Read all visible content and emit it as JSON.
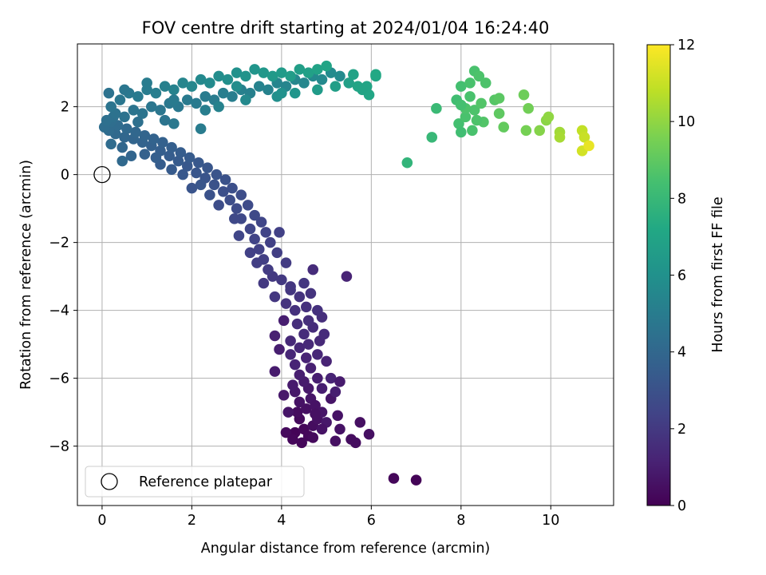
{
  "chart_data": {
    "type": "scatter",
    "title": "FOV centre drift starting at 2024/01/04 16:24:40",
    "xlabel": "Angular distance from reference (arcmin)",
    "ylabel": "Rotation from reference (arcmin)",
    "xlim": [
      -0.55,
      11.4
    ],
    "ylim": [
      -9.75,
      3.85
    ],
    "xticks": [
      0,
      2,
      4,
      6,
      8,
      10
    ],
    "yticks": [
      -8,
      -6,
      -4,
      -2,
      0,
      2
    ],
    "xtick_labels": [
      "0",
      "2",
      "4",
      "6",
      "8",
      "10"
    ],
    "ytick_labels": [
      "−8",
      "−6",
      "−4",
      "−2",
      "0",
      "2"
    ],
    "grid": true,
    "legend": {
      "placement": "lower-left",
      "entries": [
        "Reference platepar"
      ]
    },
    "reference_point": {
      "x": 0,
      "y": 0
    },
    "colorbar": {
      "label": "Hours from first FF file",
      "range": [
        0,
        12
      ],
      "ticks": [
        0,
        2,
        4,
        6,
        8,
        10,
        12
      ],
      "tick_labels": [
        "0",
        "2",
        "4",
        "6",
        "8",
        "10",
        "12"
      ],
      "colormap": "viridis"
    },
    "points": [
      [
        4.3,
        -7.6,
        0.1
      ],
      [
        4.5,
        -7.5,
        0.2
      ],
      [
        4.4,
        -7.2,
        0.3
      ],
      [
        4.6,
        -7.7,
        0.2
      ],
      [
        4.7,
        -7.4,
        0.4
      ],
      [
        4.35,
        -7.0,
        0.4
      ],
      [
        4.55,
        -6.9,
        0.5
      ],
      [
        4.8,
        -7.2,
        0.5
      ],
      [
        4.4,
        -6.7,
        0.6
      ],
      [
        4.65,
        -6.6,
        0.7
      ],
      [
        4.9,
        -7.0,
        0.7
      ],
      [
        4.3,
        -6.4,
        0.8
      ],
      [
        4.6,
        -6.3,
        0.8
      ],
      [
        4.75,
        -6.8,
        0.6
      ],
      [
        5.0,
        -7.3,
        0.8
      ],
      [
        4.5,
        -6.1,
        0.9
      ],
      [
        4.8,
        -6.0,
        1.0
      ],
      [
        4.4,
        -5.9,
        1.0
      ],
      [
        4.65,
        -5.7,
        1.1
      ],
      [
        4.9,
        -6.3,
        1.0
      ],
      [
        4.3,
        -5.6,
        1.2
      ],
      [
        4.55,
        -5.4,
        1.2
      ],
      [
        4.8,
        -5.3,
        1.3
      ],
      [
        5.1,
        -6.0,
        1.2
      ],
      [
        4.4,
        -5.1,
        1.3
      ],
      [
        4.6,
        -5.0,
        1.4
      ],
      [
        4.85,
        -4.9,
        1.4
      ],
      [
        4.2,
        -5.3,
        1.3
      ],
      [
        4.5,
        -4.7,
        1.5
      ],
      [
        4.7,
        -4.5,
        1.5
      ],
      [
        4.95,
        -4.7,
        1.5
      ],
      [
        4.35,
        -4.4,
        1.6
      ],
      [
        4.6,
        -4.3,
        1.6
      ],
      [
        4.9,
        -4.2,
        1.6
      ],
      [
        4.3,
        -4.0,
        1.7
      ],
      [
        4.55,
        -3.9,
        1.7
      ],
      [
        4.8,
        -4.0,
        1.7
      ],
      [
        4.1,
        -3.8,
        1.8
      ],
      [
        4.4,
        -3.6,
        1.8
      ],
      [
        4.65,
        -3.5,
        1.8
      ],
      [
        4.2,
        -3.3,
        1.9
      ],
      [
        4.5,
        -3.2,
        1.9
      ],
      [
        4.7,
        -2.8,
        1.5
      ],
      [
        5.45,
        -3.0,
        1.2
      ],
      [
        4.05,
        -4.3,
        1.0
      ],
      [
        3.85,
        -4.75,
        1.1
      ],
      [
        3.95,
        -5.15,
        1.0
      ],
      [
        3.85,
        -5.8,
        0.9
      ],
      [
        4.05,
        -6.5,
        0.8
      ],
      [
        4.15,
        -7.0,
        0.7
      ],
      [
        4.9,
        -7.5,
        0.6
      ],
      [
        5.2,
        -7.85,
        0.5
      ],
      [
        5.55,
        -7.8,
        0.4
      ],
      [
        5.65,
        -7.9,
        0.4
      ],
      [
        5.75,
        -7.3,
        0.5
      ],
      [
        5.95,
        -7.65,
        0.5
      ],
      [
        6.5,
        -8.95,
        0.2
      ],
      [
        7.0,
        -9.0,
        0.1
      ],
      [
        5.25,
        -7.1,
        0.6
      ],
      [
        5.1,
        -6.6,
        0.7
      ],
      [
        5.3,
        -6.1,
        0.9
      ],
      [
        4.1,
        -7.6,
        0.3
      ],
      [
        4.25,
        -7.8,
        0.2
      ],
      [
        4.45,
        -7.9,
        0.2
      ],
      [
        4.7,
        -7.75,
        0.3
      ],
      [
        5.3,
        -7.5,
        0.6
      ],
      [
        4.25,
        -6.2,
        0.9
      ],
      [
        4.2,
        -4.9,
        1.4
      ],
      [
        5.0,
        -5.5,
        1.2
      ],
      [
        5.2,
        -6.4,
        1.0
      ],
      [
        4.75,
        -7.05,
        0.5
      ],
      [
        4.0,
        -3.1,
        2.0
      ],
      [
        3.8,
        -3.0,
        2.0
      ],
      [
        4.1,
        -2.6,
        2.1
      ],
      [
        3.7,
        -2.8,
        2.1
      ],
      [
        3.9,
        -2.3,
        2.2
      ],
      [
        3.6,
        -2.5,
        2.2
      ],
      [
        3.75,
        -2.0,
        2.3
      ],
      [
        3.5,
        -2.2,
        2.3
      ],
      [
        3.65,
        -1.7,
        2.4
      ],
      [
        3.4,
        -1.9,
        2.4
      ],
      [
        3.55,
        -1.4,
        2.5
      ],
      [
        3.3,
        -1.6,
        2.5
      ],
      [
        3.4,
        -1.2,
        2.6
      ],
      [
        3.1,
        -1.3,
        2.6
      ],
      [
        3.25,
        -0.9,
        2.7
      ],
      [
        3.0,
        -1.0,
        2.7
      ],
      [
        3.1,
        -0.6,
        2.8
      ],
      [
        2.85,
        -0.75,
        2.8
      ],
      [
        2.9,
        -0.4,
        2.9
      ],
      [
        2.7,
        -0.5,
        2.9
      ],
      [
        2.75,
        -0.15,
        3.0
      ],
      [
        2.5,
        -0.3,
        3.0
      ],
      [
        2.55,
        0.0,
        3.1
      ],
      [
        2.3,
        -0.1,
        3.1
      ],
      [
        2.35,
        0.2,
        3.2
      ],
      [
        2.1,
        0.05,
        3.2
      ],
      [
        2.15,
        0.35,
        3.3
      ],
      [
        1.9,
        0.25,
        3.3
      ],
      [
        1.95,
        0.5,
        3.4
      ],
      [
        1.7,
        0.4,
        3.4
      ],
      [
        1.75,
        0.65,
        3.5
      ],
      [
        1.5,
        0.55,
        3.5
      ],
      [
        1.55,
        0.8,
        3.6
      ],
      [
        1.3,
        0.7,
        3.6
      ],
      [
        1.35,
        0.95,
        3.7
      ],
      [
        1.1,
        0.85,
        3.7
      ],
      [
        1.15,
        1.05,
        3.8
      ],
      [
        0.9,
        0.95,
        3.8
      ],
      [
        0.95,
        1.15,
        3.9
      ],
      [
        0.7,
        1.05,
        3.9
      ],
      [
        0.75,
        1.25,
        4.0
      ],
      [
        0.5,
        1.1,
        4.0
      ],
      [
        0.55,
        1.35,
        4.1
      ],
      [
        0.3,
        1.2,
        4.1
      ],
      [
        0.35,
        1.45,
        4.2
      ],
      [
        0.15,
        1.3,
        4.2
      ],
      [
        0.2,
        1.55,
        4.3
      ],
      [
        0.05,
        1.4,
        4.3
      ],
      [
        3.85,
        -3.6,
        1.9
      ],
      [
        3.6,
        -3.2,
        2.0
      ],
      [
        3.95,
        -1.7,
        2.3
      ],
      [
        3.3,
        -2.3,
        2.3
      ],
      [
        2.95,
        -1.3,
        2.6
      ],
      [
        2.4,
        -0.6,
        3.0
      ],
      [
        1.8,
        0.0,
        3.3
      ],
      [
        1.3,
        0.3,
        3.5
      ],
      [
        0.95,
        0.6,
        3.7
      ],
      [
        0.45,
        0.8,
        4.0
      ],
      [
        0.2,
        0.9,
        4.2
      ],
      [
        0.45,
        0.4,
        4.1
      ],
      [
        0.65,
        0.55,
        3.9
      ],
      [
        4.2,
        -3.4,
        1.9
      ],
      [
        3.05,
        -1.8,
        2.5
      ],
      [
        2.6,
        -0.9,
        2.8
      ],
      [
        2.0,
        -0.4,
        3.1
      ],
      [
        1.55,
        0.15,
        3.4
      ],
      [
        2.2,
        -0.3,
        3.2
      ],
      [
        1.2,
        0.5,
        3.6
      ],
      [
        3.45,
        -2.6,
        2.2
      ],
      [
        0.25,
        1.7,
        4.4
      ],
      [
        0.1,
        1.6,
        4.4
      ],
      [
        0.3,
        1.8,
        4.5
      ],
      [
        0.5,
        1.7,
        4.5
      ],
      [
        0.7,
        1.9,
        4.6
      ],
      [
        0.9,
        1.8,
        4.6
      ],
      [
        1.1,
        2.0,
        4.7
      ],
      [
        1.3,
        1.9,
        4.7
      ],
      [
        1.5,
        2.1,
        4.8
      ],
      [
        1.7,
        2.0,
        4.8
      ],
      [
        1.9,
        2.2,
        4.9
      ],
      [
        2.1,
        2.1,
        4.9
      ],
      [
        2.3,
        2.3,
        5.0
      ],
      [
        2.5,
        2.2,
        5.0
      ],
      [
        2.7,
        2.4,
        5.1
      ],
      [
        2.9,
        2.3,
        5.1
      ],
      [
        3.1,
        2.5,
        5.2
      ],
      [
        3.3,
        2.4,
        5.2
      ],
      [
        3.5,
        2.6,
        5.3
      ],
      [
        3.7,
        2.5,
        5.3
      ],
      [
        3.9,
        2.7,
        5.4
      ],
      [
        4.1,
        2.6,
        5.4
      ],
      [
        4.3,
        2.8,
        5.5
      ],
      [
        4.5,
        2.7,
        5.5
      ],
      [
        4.7,
        2.9,
        5.6
      ],
      [
        4.9,
        2.8,
        5.6
      ],
      [
        5.1,
        3.0,
        5.7
      ],
      [
        5.3,
        2.9,
        5.7
      ],
      [
        0.2,
        2.0,
        4.6
      ],
      [
        0.4,
        2.2,
        4.7
      ],
      [
        0.6,
        2.4,
        4.8
      ],
      [
        0.8,
        2.3,
        4.9
      ],
      [
        1.0,
        2.5,
        5.0
      ],
      [
        1.2,
        2.4,
        5.1
      ],
      [
        1.4,
        2.6,
        5.2
      ],
      [
        1.6,
        2.5,
        5.3
      ],
      [
        1.8,
        2.7,
        5.4
      ],
      [
        2.0,
        2.6,
        5.5
      ],
      [
        2.2,
        2.8,
        5.6
      ],
      [
        2.4,
        2.7,
        5.7
      ],
      [
        2.6,
        2.9,
        5.8
      ],
      [
        2.8,
        2.8,
        5.9
      ],
      [
        3.0,
        3.0,
        6.0
      ],
      [
        3.2,
        2.9,
        6.1
      ],
      [
        3.4,
        3.1,
        6.2
      ],
      [
        3.6,
        3.0,
        6.3
      ],
      [
        3.8,
        2.9,
        6.4
      ],
      [
        4.0,
        3.0,
        6.5
      ],
      [
        4.2,
        2.9,
        6.6
      ],
      [
        4.4,
        3.1,
        6.7
      ],
      [
        4.6,
        3.0,
        6.8
      ],
      [
        4.8,
        3.1,
        6.9
      ],
      [
        5.0,
        3.2,
        7.0
      ],
      [
        0.15,
        2.4,
        4.5
      ],
      [
        1.0,
        2.7,
        5.0
      ],
      [
        0.5,
        2.5,
        4.7
      ],
      [
        1.6,
        2.2,
        4.9
      ],
      [
        2.3,
        1.9,
        5.1
      ],
      [
        2.2,
        1.35,
        5.0
      ],
      [
        1.6,
        1.5,
        4.8
      ],
      [
        1.4,
        1.6,
        4.6
      ],
      [
        0.8,
        1.55,
        4.4
      ],
      [
        2.6,
        2.0,
        5.3
      ],
      [
        3.2,
        2.2,
        5.6
      ],
      [
        3.9,
        2.3,
        5.9
      ],
      [
        4.3,
        2.4,
        6.2
      ],
      [
        4.8,
        2.5,
        6.5
      ],
      [
        5.5,
        2.7,
        6.8
      ],
      [
        5.7,
        2.6,
        7.0
      ],
      [
        5.2,
        2.6,
        6.7
      ],
      [
        5.6,
        2.95,
        6.9
      ],
      [
        5.9,
        2.6,
        7.0
      ],
      [
        6.1,
        2.9,
        7.1
      ],
      [
        6.1,
        2.95,
        7.2
      ],
      [
        5.95,
        2.35,
        7.1
      ],
      [
        5.8,
        2.5,
        7.0
      ],
      [
        4.0,
        2.4,
        6.0
      ],
      [
        3.0,
        2.6,
        5.8
      ],
      [
        6.8,
        0.35,
        7.8
      ],
      [
        7.35,
        1.1,
        8.0
      ],
      [
        7.45,
        1.95,
        8.1
      ],
      [
        7.9,
        2.2,
        8.3
      ],
      [
        8.0,
        2.6,
        8.4
      ],
      [
        8.2,
        2.7,
        8.5
      ],
      [
        8.3,
        3.05,
        8.5
      ],
      [
        8.4,
        2.9,
        8.6
      ],
      [
        8.55,
        2.7,
        8.6
      ],
      [
        7.95,
        1.5,
        8.4
      ],
      [
        8.1,
        1.7,
        8.5
      ],
      [
        8.3,
        1.9,
        8.6
      ],
      [
        8.45,
        2.1,
        8.7
      ],
      [
        8.2,
        2.3,
        8.5
      ],
      [
        8.0,
        1.25,
        8.3
      ],
      [
        8.25,
        1.3,
        8.5
      ],
      [
        8.5,
        1.55,
        8.7
      ],
      [
        8.75,
        2.2,
        8.8
      ],
      [
        8.85,
        2.25,
        8.9
      ],
      [
        8.85,
        1.8,
        9.0
      ],
      [
        8.95,
        1.4,
        9.1
      ],
      [
        9.4,
        2.35,
        9.3
      ],
      [
        9.5,
        1.95,
        9.4
      ],
      [
        9.45,
        1.3,
        9.5
      ],
      [
        9.75,
        1.3,
        9.8
      ],
      [
        9.9,
        1.6,
        9.9
      ],
      [
        9.95,
        1.7,
        10.0
      ],
      [
        10.2,
        1.25,
        10.3
      ],
      [
        10.2,
        1.1,
        10.4
      ],
      [
        10.7,
        1.3,
        10.9
      ],
      [
        10.75,
        1.1,
        11.0
      ],
      [
        10.7,
        0.7,
        11.2
      ],
      [
        10.85,
        0.85,
        11.6
      ],
      [
        8.1,
        1.95,
        8.6
      ],
      [
        8.0,
        2.05,
        8.4
      ],
      [
        8.35,
        1.6,
        8.6
      ]
    ]
  }
}
